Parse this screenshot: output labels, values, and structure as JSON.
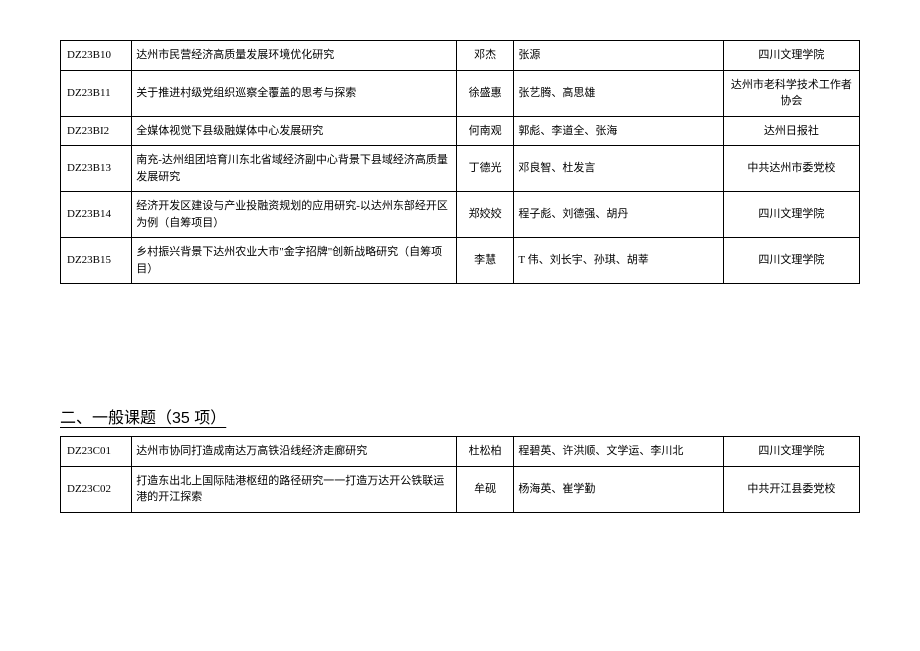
{
  "table1": {
    "rows": [
      {
        "id": "DZ23B10",
        "title": "达州市民营经济高质量发展环境优化研究",
        "lead": "邓杰",
        "members": "张源",
        "org": "四川文理学院"
      },
      {
        "id": "DZ23B11",
        "title": "关于推进村级党组织巡察全覆盖的思考与探索",
        "lead": "徐盛惠",
        "members": "张艺腾、高思雄",
        "org": "达州市老科学技术工作者协会"
      },
      {
        "id": "DZ23BI2",
        "title": "全媒体视觉下县级融媒体中心发展研究",
        "lead": "何南观",
        "members": "郭彪、李道全、张海",
        "org": "达州日报社"
      },
      {
        "id": "DZ23B13",
        "title": "南充-达州组团培育川东北省域经济副中心背景下县域经济高质量发展研究",
        "lead": "丁德光",
        "members": "邓良智、杜发言",
        "org": "中共达州市委党校"
      },
      {
        "id": "DZ23B14",
        "title": "经济开发区建设与产业投融资规划的应用研究-以达州东部经开区为例（自筹项目）",
        "lead": "郑姣姣",
        "members": "程子彪、刘德强、胡丹",
        "org": "四川文理学院"
      },
      {
        "id": "DZ23B15",
        "title": "乡村振兴背景下达州农业大市\"金字招牌\"创新战略研究（自筹项目）",
        "lead": "李慧",
        "members": "T 伟、刘长宇、孙琪、胡莘",
        "org": "四川文理学院"
      }
    ]
  },
  "section2_heading": "二、一般课题（35 项）",
  "table2": {
    "rows": [
      {
        "id": "DZ23C01",
        "title": "达州市协同打造成南达万高铁沿线经济走廊研究",
        "lead": "杜松柏",
        "members": "程碧英、许洪顺、文学运、李川北",
        "org": "四川文理学院"
      },
      {
        "id": "DZ23C02",
        "title": "打造东出北上国际陆港枢纽的路径研究一一打造万达开公铁联运港的开江探索",
        "lead": "牟砚",
        "members": "杨海英、崔学勤",
        "org": "中共开江县委党校"
      }
    ]
  }
}
